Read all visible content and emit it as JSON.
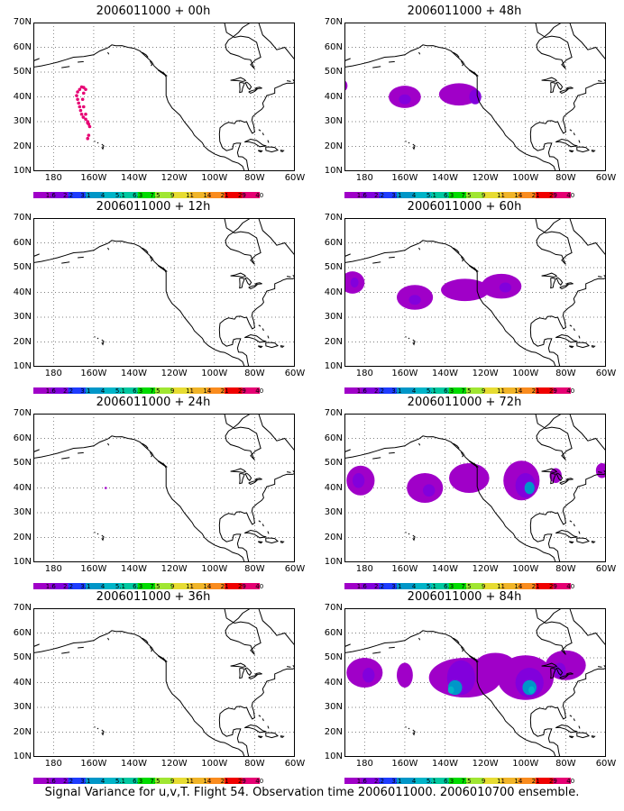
{
  "caption": "Signal Variance for u,v,T. Flight 54. Observation time 2006011000. 2006010700 ensemble.",
  "lat_labels": [
    "70N",
    "60N",
    "50N",
    "40N",
    "30N",
    "20N",
    "10N"
  ],
  "lon_labels": [
    "180",
    "160W",
    "140W",
    "120W",
    "100W",
    "80W",
    "60W"
  ],
  "colorbar": {
    "levels": [
      "1.6",
      "2.2",
      "3.1",
      "4",
      "5.1",
      "6.3",
      "7.5",
      "9",
      "11",
      "14",
      "21",
      "29",
      "40"
    ],
    "colors": [
      "#a000c8",
      "#8200dc",
      "#1e3cff",
      "#0096c8",
      "#00b4c8",
      "#00c8a0",
      "#00dc00",
      "#a0e632",
      "#e6dc32",
      "#f0b428",
      "#fa8c1e",
      "#f00000",
      "#e60073"
    ]
  },
  "panels": [
    {
      "title": "2006011000 + 00h"
    },
    {
      "title": "2006011000 + 48h"
    },
    {
      "title": "2006011000 + 12h"
    },
    {
      "title": "2006011000 + 60h"
    },
    {
      "title": "2006011000 + 24h"
    },
    {
      "title": "2006011000 + 72h"
    },
    {
      "title": "2006011000 + 36h"
    },
    {
      "title": "2006011000 + 84h"
    }
  ]
}
